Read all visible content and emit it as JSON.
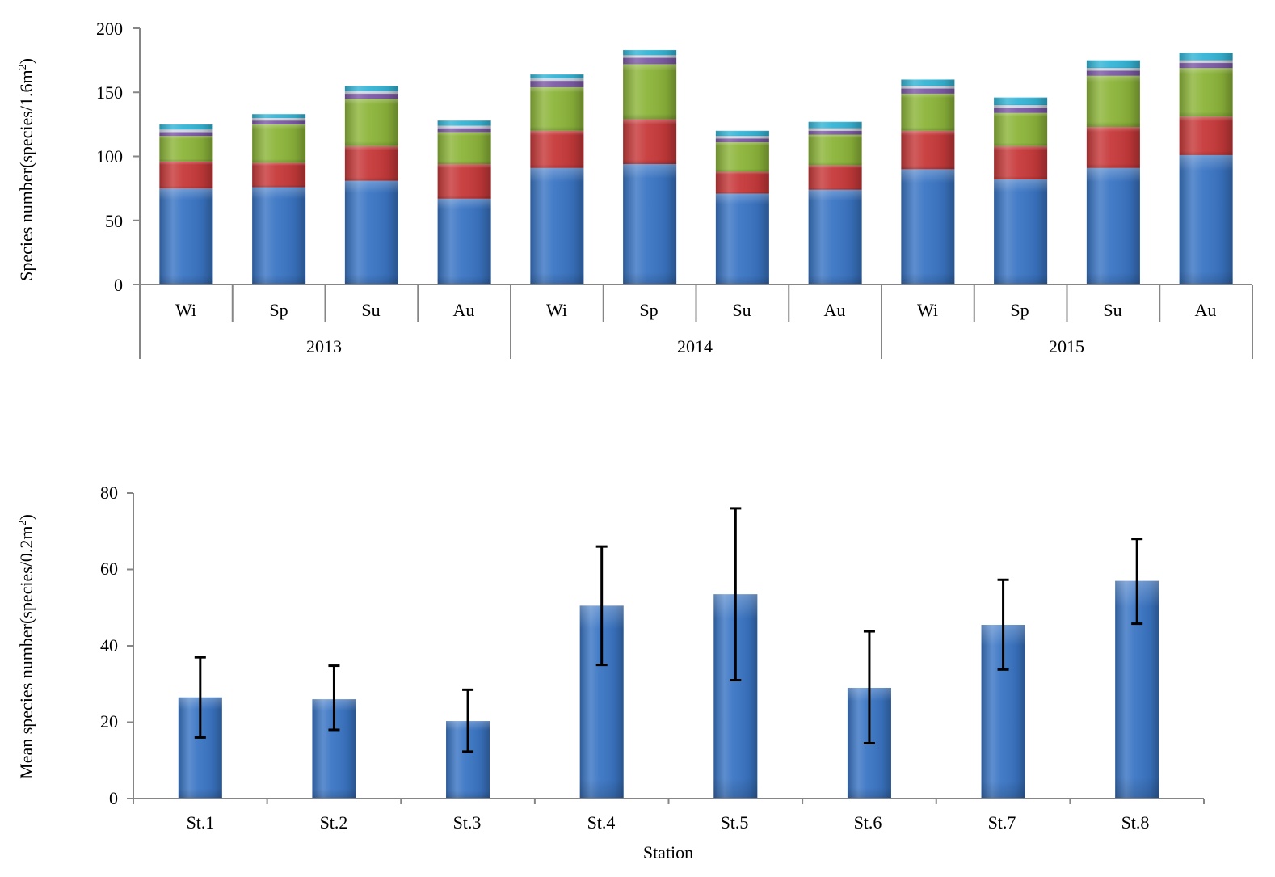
{
  "chart_data": [
    {
      "type": "bar",
      "stacked": true,
      "ylabel": "Species number(species/1.6m",
      "ylabel_sup": "2",
      "ylabel_close": ")",
      "ylim": [
        0,
        200
      ],
      "yticks": [
        "0",
        "50",
        "100",
        "150",
        "200"
      ],
      "groups": [
        "2013",
        "2014",
        "2015"
      ],
      "categories": [
        "Wi",
        "Sp",
        "Su",
        "Au",
        "Wi",
        "Sp",
        "Su",
        "Au",
        "Wi",
        "Sp",
        "Su",
        "Au"
      ],
      "colors": {
        "series_1": "#3a75c4",
        "series_2": "#c7393a",
        "series_3": "#8db53a",
        "series_4": "#7d5ba6",
        "series_5": "#cfd6e4",
        "series_6": "#35b5d6"
      },
      "series": [
        {
          "values": [
            75,
            76,
            81,
            67,
            91,
            94,
            71,
            74,
            90,
            82,
            91,
            101
          ]
        },
        {
          "values": [
            21,
            19,
            27,
            27,
            29,
            35,
            17,
            19,
            30,
            26,
            32,
            30
          ]
        },
        {
          "values": [
            20,
            30,
            37,
            25,
            34,
            43,
            23,
            24,
            29,
            26,
            40,
            38
          ]
        },
        {
          "values": [
            3,
            3,
            4,
            3,
            5,
            5,
            3,
            3,
            4,
            4,
            4,
            4
          ]
        },
        {
          "values": [
            2,
            2,
            2,
            2,
            2,
            2,
            2,
            2,
            2,
            2,
            2,
            2
          ]
        },
        {
          "values": [
            4,
            3,
            4,
            4,
            3,
            4,
            4,
            5,
            5,
            6,
            6,
            6
          ]
        }
      ]
    },
    {
      "type": "bar",
      "ylabel": "Mean species number(species/0.2m",
      "ylabel_sup": "2",
      "ylabel_close": ")",
      "xlabel": "Station",
      "ylim": [
        0,
        80
      ],
      "yticks": [
        "0",
        "20",
        "40",
        "60",
        "80"
      ],
      "categories": [
        "St.1",
        "St.2",
        "St.3",
        "St.4",
        "St.5",
        "St.6",
        "St.7",
        "St.8"
      ],
      "bar_color": "#3a75c4",
      "values": [
        26.5,
        26,
        20.3,
        50.5,
        53.5,
        29,
        45.5,
        57
      ],
      "error_bars": [
        {
          "low": 16,
          "high": 37
        },
        {
          "low": 18,
          "high": 34.8
        },
        {
          "low": 12.3,
          "high": 28.5
        },
        {
          "low": 35,
          "high": 66
        },
        {
          "low": 31,
          "high": 76
        },
        {
          "low": 14.5,
          "high": 43.8
        },
        {
          "low": 33.8,
          "high": 57.3
        },
        {
          "low": 45.8,
          "high": 68
        }
      ]
    }
  ]
}
